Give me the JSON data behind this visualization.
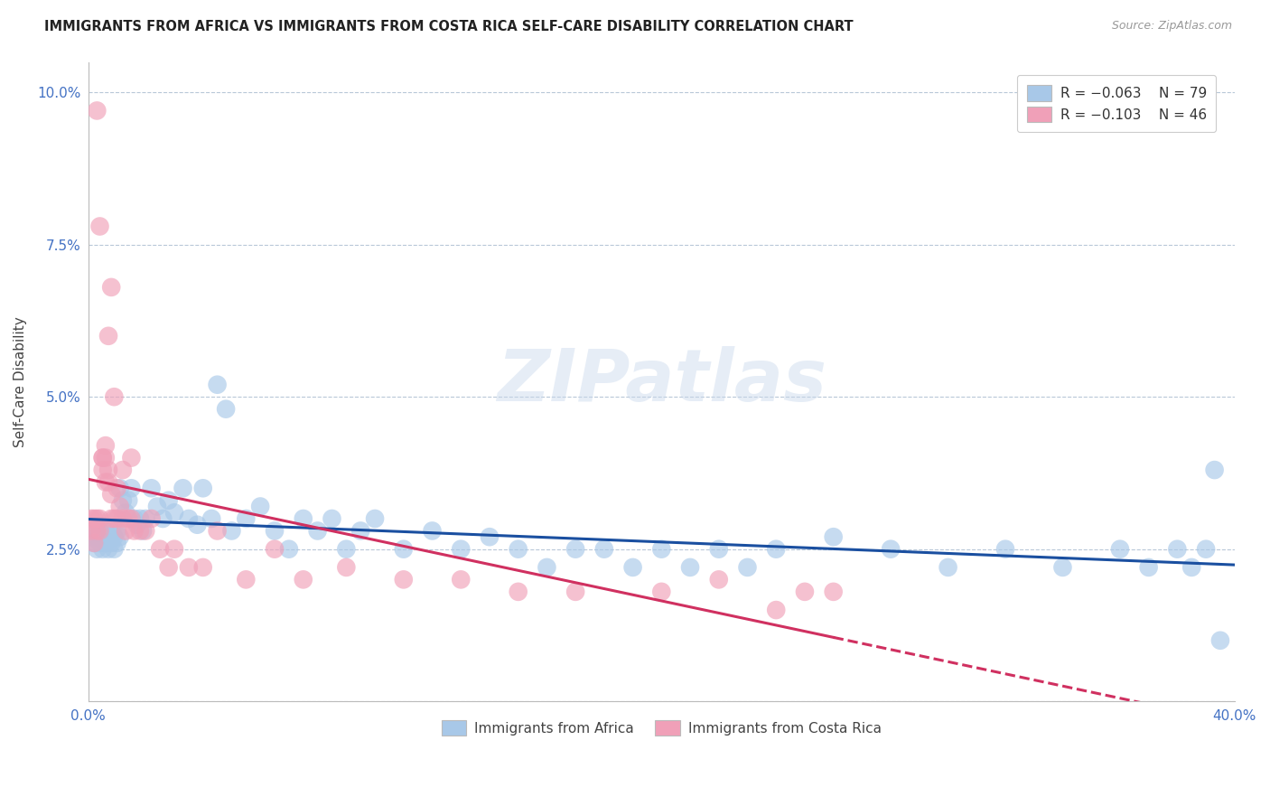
{
  "title": "IMMIGRANTS FROM AFRICA VS IMMIGRANTS FROM COSTA RICA SELF-CARE DISABILITY CORRELATION CHART",
  "source": "Source: ZipAtlas.com",
  "ylabel": "Self-Care Disability",
  "xlim": [
    0.0,
    0.4
  ],
  "ylim": [
    0.0,
    0.105
  ],
  "xticks": [
    0.0,
    0.05,
    0.1,
    0.15,
    0.2,
    0.25,
    0.3,
    0.35,
    0.4
  ],
  "xticklabels": [
    "0.0%",
    "",
    "",
    "",
    "",
    "",
    "",
    "",
    "40.0%"
  ],
  "yticks": [
    0.0,
    0.025,
    0.05,
    0.075,
    0.1
  ],
  "yticklabels": [
    "",
    "2.5%",
    "5.0%",
    "7.5%",
    "10.0%"
  ],
  "color_africa": "#A8C8E8",
  "color_costarica": "#F0A0B8",
  "line_color_africa": "#1A4FA0",
  "line_color_costarica": "#D03060",
  "watermark": "ZIPatlas",
  "africa_x": [
    0.001,
    0.002,
    0.002,
    0.003,
    0.003,
    0.004,
    0.004,
    0.005,
    0.005,
    0.006,
    0.006,
    0.007,
    0.007,
    0.008,
    0.008,
    0.009,
    0.009,
    0.01,
    0.01,
    0.011,
    0.011,
    0.012,
    0.013,
    0.014,
    0.015,
    0.016,
    0.017,
    0.018,
    0.019,
    0.02,
    0.022,
    0.024,
    0.026,
    0.028,
    0.03,
    0.033,
    0.035,
    0.038,
    0.04,
    0.043,
    0.045,
    0.048,
    0.05,
    0.055,
    0.06,
    0.065,
    0.07,
    0.075,
    0.08,
    0.085,
    0.09,
    0.095,
    0.1,
    0.11,
    0.12,
    0.13,
    0.14,
    0.15,
    0.16,
    0.17,
    0.18,
    0.19,
    0.2,
    0.21,
    0.22,
    0.23,
    0.24,
    0.26,
    0.28,
    0.3,
    0.32,
    0.34,
    0.36,
    0.37,
    0.38,
    0.385,
    0.39,
    0.393,
    0.395
  ],
  "africa_y": [
    0.027,
    0.028,
    0.026,
    0.027,
    0.025,
    0.028,
    0.026,
    0.027,
    0.025,
    0.028,
    0.026,
    0.027,
    0.025,
    0.028,
    0.026,
    0.027,
    0.025,
    0.028,
    0.026,
    0.027,
    0.035,
    0.033,
    0.031,
    0.033,
    0.035,
    0.03,
    0.029,
    0.03,
    0.028,
    0.03,
    0.035,
    0.032,
    0.03,
    0.033,
    0.031,
    0.035,
    0.03,
    0.029,
    0.035,
    0.03,
    0.052,
    0.048,
    0.028,
    0.03,
    0.032,
    0.028,
    0.025,
    0.03,
    0.028,
    0.03,
    0.025,
    0.028,
    0.03,
    0.025,
    0.028,
    0.025,
    0.027,
    0.025,
    0.022,
    0.025,
    0.025,
    0.022,
    0.025,
    0.022,
    0.025,
    0.022,
    0.025,
    0.027,
    0.025,
    0.022,
    0.025,
    0.022,
    0.025,
    0.022,
    0.025,
    0.022,
    0.025,
    0.038,
    0.01
  ],
  "costarica_x": [
    0.001,
    0.001,
    0.002,
    0.002,
    0.003,
    0.003,
    0.004,
    0.004,
    0.005,
    0.005,
    0.006,
    0.006,
    0.007,
    0.007,
    0.008,
    0.008,
    0.009,
    0.01,
    0.011,
    0.012,
    0.013,
    0.014,
    0.015,
    0.016,
    0.018,
    0.02,
    0.022,
    0.025,
    0.028,
    0.03,
    0.035,
    0.04,
    0.045,
    0.055,
    0.065,
    0.075,
    0.09,
    0.11,
    0.13,
    0.15,
    0.17,
    0.2,
    0.22,
    0.24,
    0.25,
    0.26
  ],
  "costarica_y": [
    0.03,
    0.028,
    0.03,
    0.026,
    0.028,
    0.03,
    0.028,
    0.03,
    0.04,
    0.038,
    0.036,
    0.04,
    0.038,
    0.036,
    0.034,
    0.03,
    0.03,
    0.03,
    0.032,
    0.03,
    0.028,
    0.03,
    0.03,
    0.028,
    0.028,
    0.028,
    0.03,
    0.025,
    0.022,
    0.025,
    0.022,
    0.022,
    0.028,
    0.02,
    0.025,
    0.02,
    0.022,
    0.02,
    0.02,
    0.018,
    0.018,
    0.018,
    0.02,
    0.015,
    0.018,
    0.018
  ],
  "costarica_x_high": [
    0.003,
    0.004,
    0.005,
    0.006,
    0.007,
    0.008,
    0.009,
    0.01,
    0.012,
    0.015
  ],
  "costarica_y_high": [
    0.097,
    0.078,
    0.04,
    0.042,
    0.06,
    0.068,
    0.05,
    0.035,
    0.038,
    0.04
  ]
}
